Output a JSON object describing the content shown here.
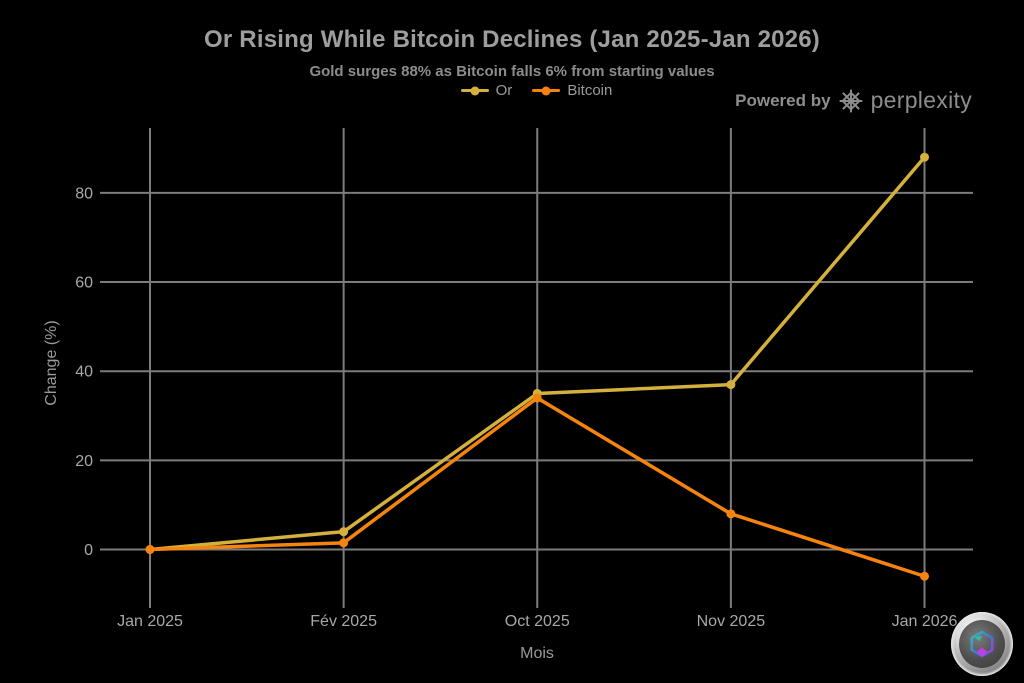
{
  "header": {
    "powered_by_label": "Powered by",
    "brand_name": "perplexity"
  },
  "chart_data": {
    "type": "line",
    "title": "Or Rising While Bitcoin Declines (Jan 2025-Jan 2026)",
    "subtitle": "Gold surges 88% as Bitcoin falls 6% from starting values",
    "xlabel": "Mois",
    "ylabel": "Change (%)",
    "categories": [
      "Jan 2025",
      "Fév 2025",
      "Oct 2025",
      "Nov 2025",
      "Jan 2026"
    ],
    "series": [
      {
        "name": "Or",
        "color": "#d4b13d",
        "values": [
          0,
          4,
          35,
          37,
          88
        ]
      },
      {
        "name": "Bitcoin",
        "color": "#f5840e",
        "values": [
          0,
          1.5,
          34,
          8,
          -6
        ]
      }
    ],
    "yticks": [
      0,
      20,
      40,
      60,
      80
    ],
    "ylim": [
      -13,
      95
    ],
    "grid": true,
    "legend_position": "top-center",
    "background": "#000000",
    "colors": {
      "grid": "#7c7c7c",
      "tick_text": "#a8a8a8",
      "title_text": "#9e9e9e",
      "subtitle_text": "#8c8c8c"
    }
  }
}
